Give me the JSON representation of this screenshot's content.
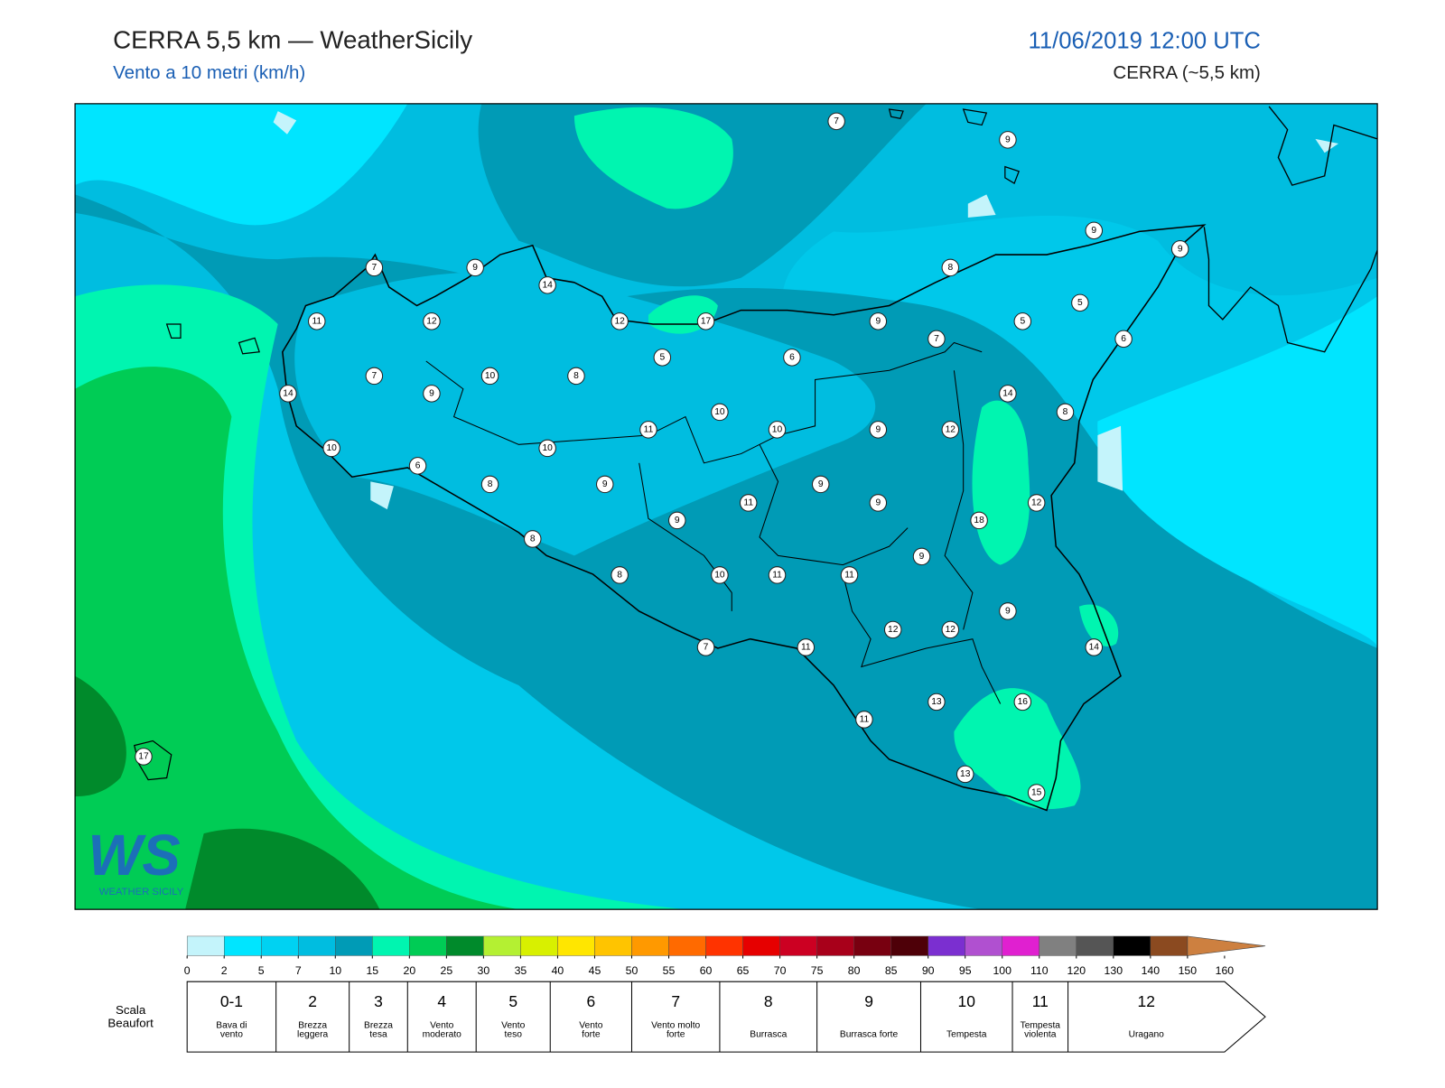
{
  "header": {
    "title": "CERRA 5,5 km — WeatherSicily",
    "subtitle": "Vento a 10 metri (km/h)",
    "date": "11/06/2019 12:00 UTC",
    "model": "CERRA (~5,5 km)"
  },
  "stations": [
    7,
    9,
    9,
    9,
    7,
    9,
    14,
    8,
    5,
    11,
    12,
    12,
    17,
    9,
    5,
    7,
    6,
    5,
    6,
    7,
    10,
    8,
    9,
    14,
    14,
    8,
    10,
    11,
    10,
    9,
    12,
    10,
    10,
    6,
    8,
    9,
    9,
    11,
    9,
    12,
    9,
    18,
    8,
    9,
    8,
    10,
    11,
    11,
    9,
    12,
    12,
    14,
    7,
    11,
    13,
    16,
    11,
    17,
    13,
    15
  ],
  "logo": {
    "mark": "WS",
    "text": "WEATHER SICILY"
  },
  "colorbar": {
    "ticks": [
      0,
      2,
      5,
      7,
      10,
      15,
      20,
      25,
      30,
      35,
      40,
      45,
      50,
      55,
      60,
      65,
      70,
      75,
      80,
      85,
      90,
      95,
      100,
      110,
      120,
      130,
      140,
      150,
      160
    ],
    "colors": [
      "#c4f4fb",
      "#00e5ff",
      "#00d2f2",
      "#00bde0",
      "#009bb6",
      "#00f5b0",
      "#00cc55",
      "#008a2b",
      "#b4f032",
      "#d8f000",
      "#ffe600",
      "#ffc400",
      "#ff9900",
      "#ff6a00",
      "#ff3300",
      "#e60000",
      "#cc0022",
      "#a8001a",
      "#780010",
      "#4e0008",
      "#7b2fd0",
      "#b050d0",
      "#e020d0",
      "#808080",
      "#555555",
      "#000000",
      "#8b4a20",
      "#cd8040"
    ]
  },
  "beaufort": {
    "label": "Scala Beaufort",
    "levels": [
      {
        "force": "0-1",
        "name": "Bava di vento"
      },
      {
        "force": "2",
        "name": "Brezza leggera"
      },
      {
        "force": "3",
        "name": "Brezza tesa"
      },
      {
        "force": "4",
        "name": "Vento moderato"
      },
      {
        "force": "5",
        "name": "Vento teso"
      },
      {
        "force": "6",
        "name": "Vento forte"
      },
      {
        "force": "7",
        "name": "Vento molto forte"
      },
      {
        "force": "8",
        "name": "Burrasca"
      },
      {
        "force": "9",
        "name": "Burrasca forte"
      },
      {
        "force": "10",
        "name": "Tempesta"
      },
      {
        "force": "11",
        "name": "Tempesta violenta"
      },
      {
        "force": "12",
        "name": "Uragano"
      }
    ]
  }
}
